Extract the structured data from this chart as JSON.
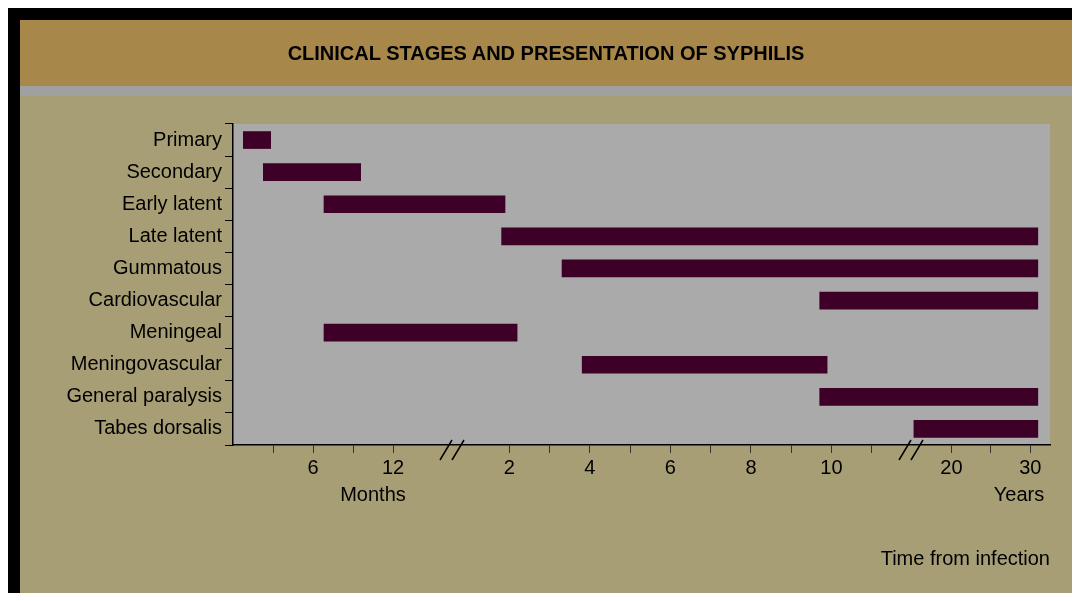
{
  "chart_data": [
    {
      "type": "bar",
      "orientation": "horizontal",
      "title": "CLINICAL STAGES AND PRESENTATION OF SYPHILIS",
      "annotations": [
        "Months"
      ],
      "categories": [
        "Primary",
        "Secondary",
        "Early latent",
        "Late latent",
        "Gummatous",
        "Cardiovascular",
        "Meningeal",
        "Meningovascular",
        "General paralysis",
        "Tabes dorsalis"
      ],
      "base": [
        0.75,
        2.25,
        6.8,
        null,
        null,
        null,
        6.8,
        null,
        null,
        null
      ],
      "values": [
        2.1,
        7.35,
        9.7,
        null,
        null,
        null,
        9.7,
        null,
        null,
        null
      ],
      "color": "#3d0026",
      "xlim": [
        0,
        16.5
      ],
      "xticks": [
        {
          "value": 3,
          "label": null
        },
        6,
        {
          "value": 9,
          "label": null
        },
        12
      ],
      "grid": false,
      "legend": false
    },
    {
      "type": "bar",
      "orientation": "horizontal",
      "base": [
        null,
        null,
        0.6,
        1.8,
        3.3,
        9.7,
        0.6,
        3.8,
        9.7,
        null
      ],
      "values": [
        null,
        null,
        1.3,
        10.2,
        8.7,
        2.3,
        1.6,
        6.1,
        2.3,
        null
      ],
      "color": "#3d0026",
      "xlim": [
        0.6,
        12
      ],
      "xticks": [
        2,
        {
          "value": 3,
          "label": null
        },
        4,
        {
          "value": 5,
          "label": null
        },
        6,
        {
          "value": 7,
          "label": null
        },
        8,
        {
          "value": 9,
          "label": null
        },
        10,
        {
          "value": 11,
          "label": null
        }
      ],
      "grid": false,
      "legend": false,
      "tick_labels": "x"
    },
    {
      "type": "bar",
      "orientation": "horizontal",
      "xlabel": "Time from infection",
      "annotations": [
        "Years"
      ],
      "base": [
        null,
        null,
        null,
        15,
        15,
        15,
        null,
        null,
        15,
        15.2
      ],
      "values": [
        null,
        null,
        null,
        16,
        16,
        16,
        null,
        null,
        16,
        15.8
      ],
      "color": "#3d0026",
      "xlim": [
        15,
        32.5
      ],
      "xticks": [
        20,
        {
          "value": 25,
          "label": null
        },
        30
      ],
      "grid": false,
      "legend": false,
      "tick_labels": "x"
    }
  ]
}
